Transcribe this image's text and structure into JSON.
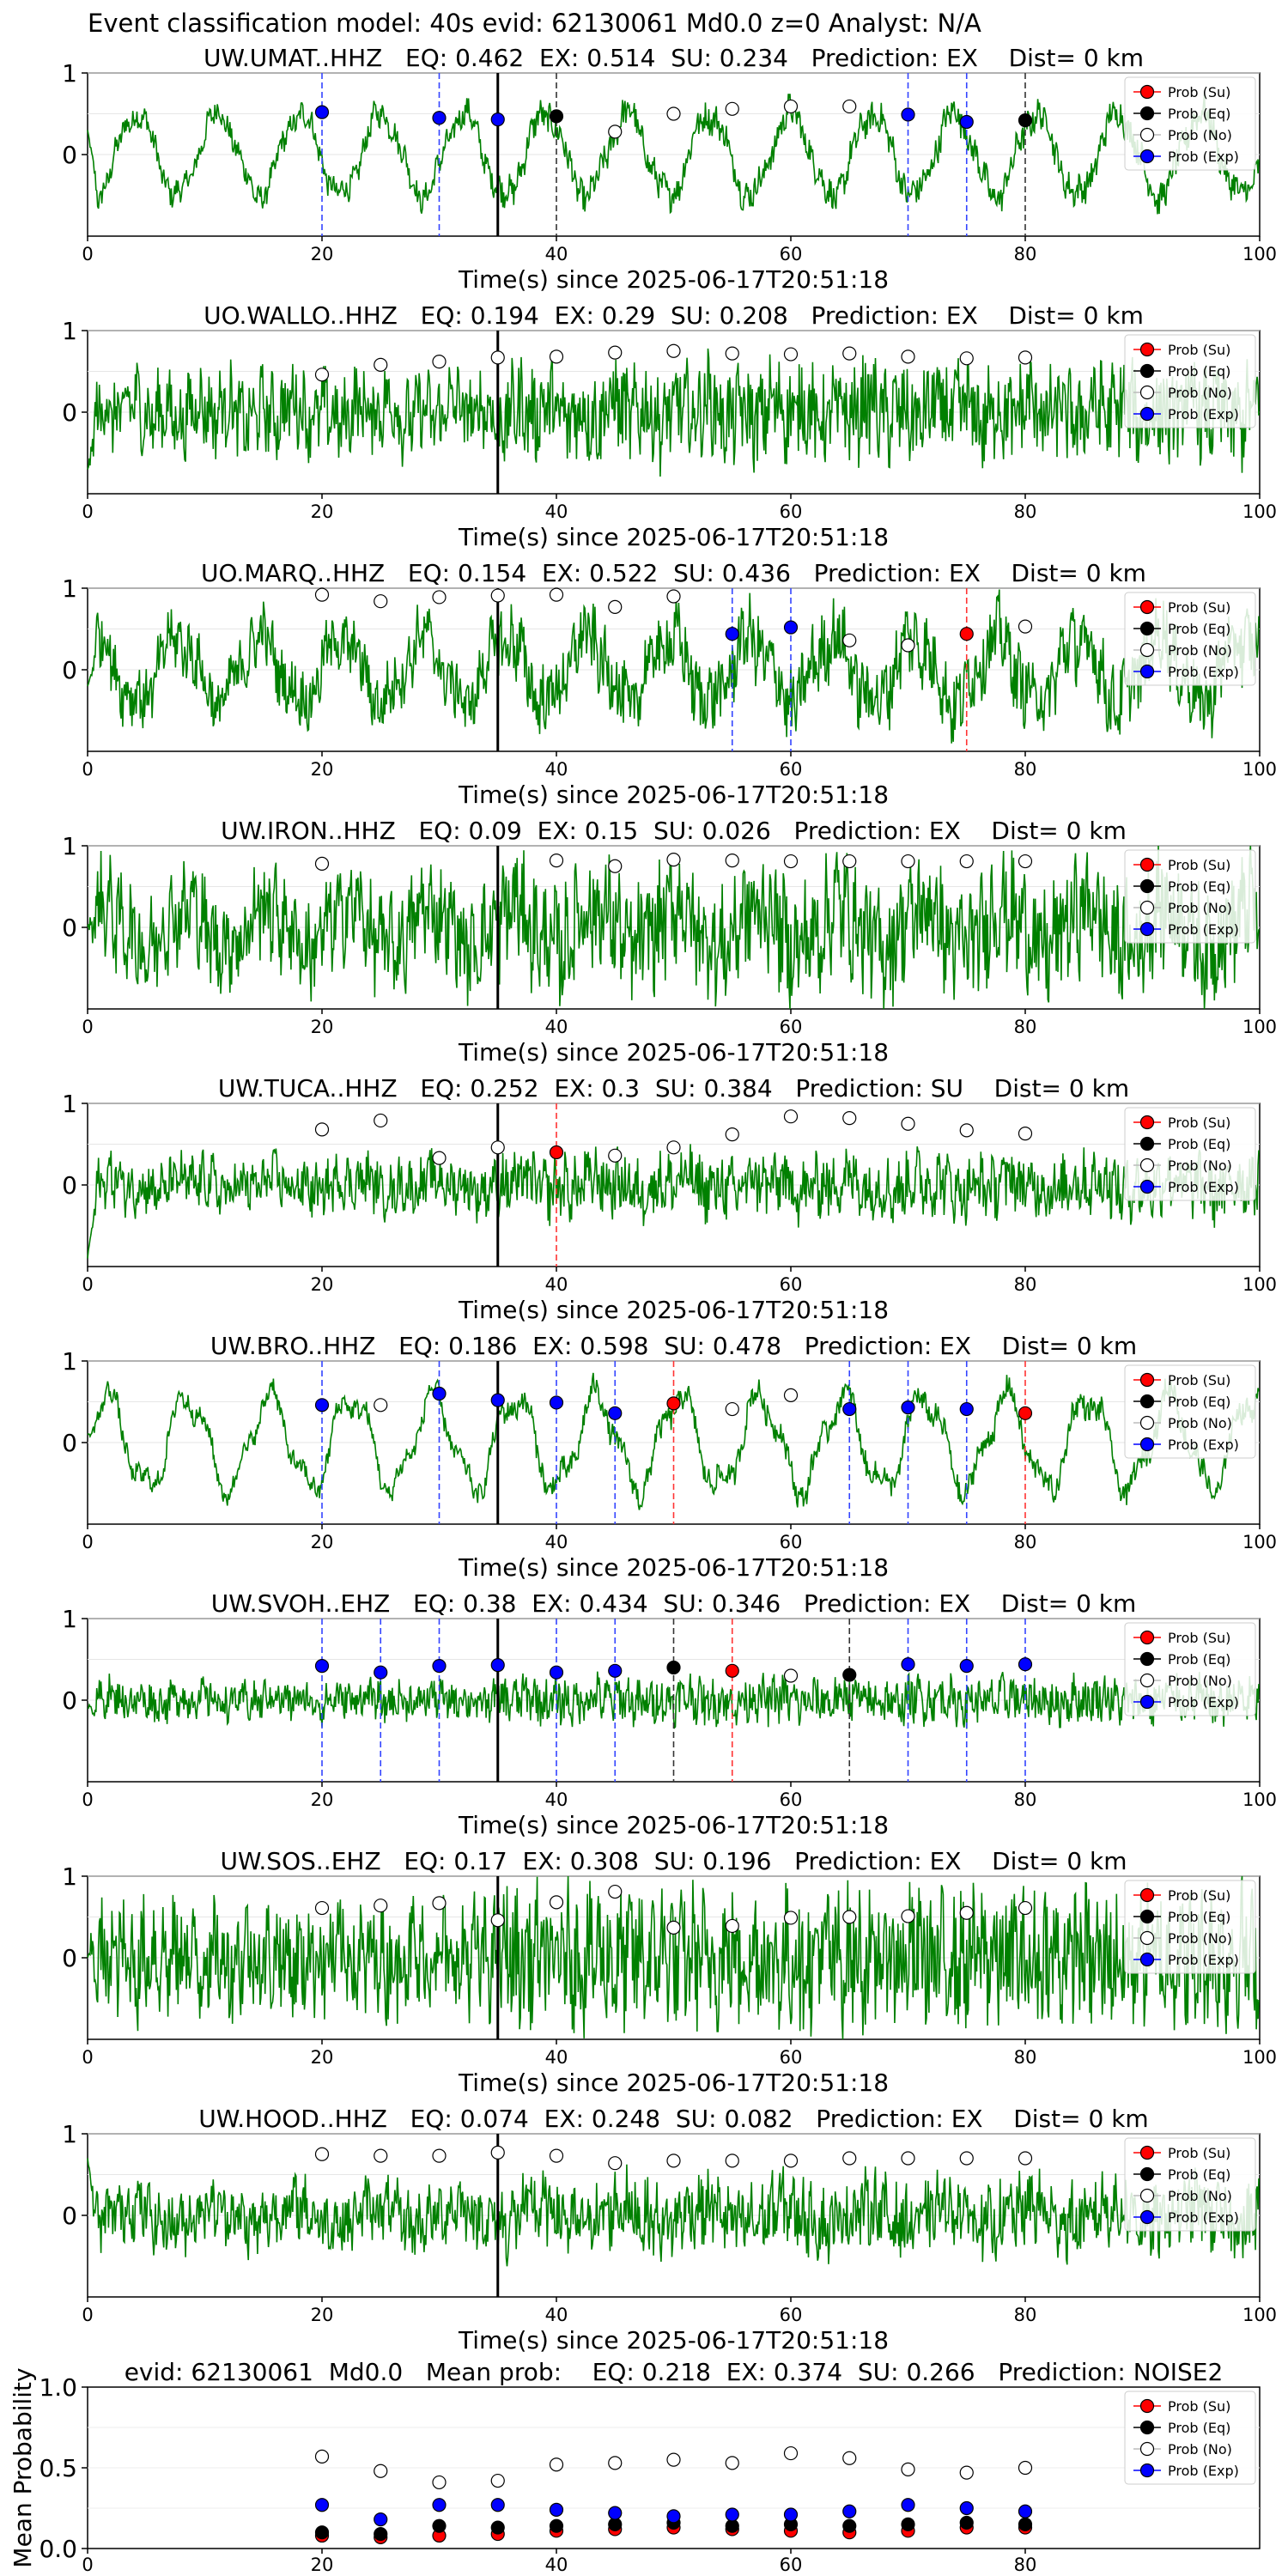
{
  "figure_title": "Event classification model: 40s evid: 62130061 Md0.0 z=0 Analyst: N/A",
  "legend_labels": [
    "Prob (Su)",
    "Prob (Eq)",
    "Prob (No)",
    "Prob (Exp)"
  ],
  "colors": {
    "su": "#ff0000",
    "eq": "#000000",
    "no": "#ffffff",
    "exp": "#0000ff",
    "waveform": "#008000",
    "arrival_line": "#000000"
  },
  "chart_data": [
    {
      "type": "line",
      "title": "UW.UMAT..HHZ   EQ: 0.462  EX: 0.514  SU: 0.234   Prediction: EX    Dist= 0 km",
      "xlabel": "Time(s) since 2025-06-17T20:51:18",
      "xlim": [
        0,
        100
      ],
      "ylim": [
        -1,
        1
      ],
      "xticks": [
        "0",
        "20",
        "40",
        "60",
        "80",
        "100"
      ],
      "yticks": [
        "0",
        "1"
      ],
      "arrival_time": 35,
      "points": [
        {
          "x": 20,
          "cls": "exp",
          "p": 0.52
        },
        {
          "x": 30,
          "cls": "exp",
          "p": 0.45
        },
        {
          "x": 35,
          "cls": "exp",
          "p": 0.43
        },
        {
          "x": 40,
          "cls": "eq",
          "p": 0.47
        },
        {
          "x": 45,
          "cls": "no",
          "p": 0.28
        },
        {
          "x": 50,
          "cls": "no",
          "p": 0.5
        },
        {
          "x": 55,
          "cls": "no",
          "p": 0.56
        },
        {
          "x": 60,
          "cls": "no",
          "p": 0.59
        },
        {
          "x": 65,
          "cls": "no",
          "p": 0.59
        },
        {
          "x": 70,
          "cls": "exp",
          "p": 0.49
        },
        {
          "x": 75,
          "cls": "exp",
          "p": 0.4
        },
        {
          "x": 80,
          "cls": "eq",
          "p": 0.42
        }
      ]
    },
    {
      "type": "line",
      "title": "UO.WALLO..HHZ   EQ: 0.194  EX: 0.29  SU: 0.208   Prediction: EX    Dist= 0 km",
      "xlabel": "Time(s) since 2025-06-17T20:51:18",
      "xlim": [
        0,
        100
      ],
      "ylim": [
        -1,
        1
      ],
      "xticks": [
        "0",
        "20",
        "40",
        "60",
        "80",
        "100"
      ],
      "yticks": [
        "0",
        "1"
      ],
      "arrival_time": 35,
      "points": [
        {
          "x": 20,
          "cls": "no",
          "p": 0.46
        },
        {
          "x": 25,
          "cls": "no",
          "p": 0.58
        },
        {
          "x": 30,
          "cls": "no",
          "p": 0.62
        },
        {
          "x": 35,
          "cls": "no",
          "p": 0.67
        },
        {
          "x": 40,
          "cls": "no",
          "p": 0.68
        },
        {
          "x": 45,
          "cls": "no",
          "p": 0.73
        },
        {
          "x": 50,
          "cls": "no",
          "p": 0.75
        },
        {
          "x": 55,
          "cls": "no",
          "p": 0.72
        },
        {
          "x": 60,
          "cls": "no",
          "p": 0.71
        },
        {
          "x": 65,
          "cls": "no",
          "p": 0.72
        },
        {
          "x": 70,
          "cls": "no",
          "p": 0.68
        },
        {
          "x": 75,
          "cls": "no",
          "p": 0.66
        },
        {
          "x": 80,
          "cls": "no",
          "p": 0.67
        }
      ]
    },
    {
      "type": "line",
      "title": "UO.MARQ..HHZ   EQ: 0.154  EX: 0.522  SU: 0.436   Prediction: EX    Dist= 0 km",
      "xlabel": "Time(s) since 2025-06-17T20:51:18",
      "xlim": [
        0,
        100
      ],
      "ylim": [
        -1,
        1
      ],
      "xticks": [
        "0",
        "20",
        "40",
        "60",
        "80",
        "100"
      ],
      "yticks": [
        "0",
        "1"
      ],
      "arrival_time": 35,
      "points": [
        {
          "x": 20,
          "cls": "no",
          "p": 0.92
        },
        {
          "x": 25,
          "cls": "no",
          "p": 0.84
        },
        {
          "x": 30,
          "cls": "no",
          "p": 0.89
        },
        {
          "x": 35,
          "cls": "no",
          "p": 0.91
        },
        {
          "x": 40,
          "cls": "no",
          "p": 0.92
        },
        {
          "x": 45,
          "cls": "no",
          "p": 0.77
        },
        {
          "x": 50,
          "cls": "no",
          "p": 0.9
        },
        {
          "x": 55,
          "cls": "exp",
          "p": 0.44
        },
        {
          "x": 60,
          "cls": "exp",
          "p": 0.52
        },
        {
          "x": 65,
          "cls": "no",
          "p": 0.36
        },
        {
          "x": 70,
          "cls": "no",
          "p": 0.3
        },
        {
          "x": 75,
          "cls": "su",
          "p": 0.44
        },
        {
          "x": 80,
          "cls": "no",
          "p": 0.53
        }
      ]
    },
    {
      "type": "line",
      "title": "UW.IRON..HHZ   EQ: 0.09  EX: 0.15  SU: 0.026   Prediction: EX    Dist= 0 km",
      "xlabel": "Time(s) since 2025-06-17T20:51:18",
      "xlim": [
        0,
        100
      ],
      "ylim": [
        -1,
        1
      ],
      "xticks": [
        "0",
        "20",
        "40",
        "60",
        "80",
        "100"
      ],
      "yticks": [
        "0",
        "1"
      ],
      "arrival_time": 35,
      "points": [
        {
          "x": 20,
          "cls": "no",
          "p": 0.78
        },
        {
          "x": 40,
          "cls": "no",
          "p": 0.82
        },
        {
          "x": 45,
          "cls": "no",
          "p": 0.75
        },
        {
          "x": 50,
          "cls": "no",
          "p": 0.83
        },
        {
          "x": 55,
          "cls": "no",
          "p": 0.82
        },
        {
          "x": 60,
          "cls": "no",
          "p": 0.81
        },
        {
          "x": 65,
          "cls": "no",
          "p": 0.81
        },
        {
          "x": 70,
          "cls": "no",
          "p": 0.81
        },
        {
          "x": 75,
          "cls": "no",
          "p": 0.81
        },
        {
          "x": 80,
          "cls": "no",
          "p": 0.81
        }
      ]
    },
    {
      "type": "line",
      "title": "UW.TUCA..HHZ   EQ: 0.252  EX: 0.3  SU: 0.384   Prediction: SU    Dist= 0 km",
      "xlabel": "Time(s) since 2025-06-17T20:51:18",
      "xlim": [
        0,
        100
      ],
      "ylim": [
        -1,
        1
      ],
      "xticks": [
        "0",
        "20",
        "40",
        "60",
        "80",
        "100"
      ],
      "yticks": [
        "0",
        "1"
      ],
      "arrival_time": 35,
      "points": [
        {
          "x": 20,
          "cls": "no",
          "p": 0.68
        },
        {
          "x": 25,
          "cls": "no",
          "p": 0.79
        },
        {
          "x": 30,
          "cls": "no",
          "p": 0.33
        },
        {
          "x": 35,
          "cls": "no",
          "p": 0.46
        },
        {
          "x": 40,
          "cls": "su",
          "p": 0.4
        },
        {
          "x": 45,
          "cls": "no",
          "p": 0.36
        },
        {
          "x": 50,
          "cls": "no",
          "p": 0.46
        },
        {
          "x": 55,
          "cls": "no",
          "p": 0.62
        },
        {
          "x": 60,
          "cls": "no",
          "p": 0.84
        },
        {
          "x": 65,
          "cls": "no",
          "p": 0.82
        },
        {
          "x": 70,
          "cls": "no",
          "p": 0.75
        },
        {
          "x": 75,
          "cls": "no",
          "p": 0.67
        },
        {
          "x": 80,
          "cls": "no",
          "p": 0.63
        }
      ]
    },
    {
      "type": "line",
      "title": "UW.BRO..HHZ   EQ: 0.186  EX: 0.598  SU: 0.478   Prediction: EX    Dist= 0 km",
      "xlabel": "Time(s) since 2025-06-17T20:51:18",
      "xlim": [
        0,
        100
      ],
      "ylim": [
        -1,
        1
      ],
      "xticks": [
        "0",
        "20",
        "40",
        "60",
        "80",
        "100"
      ],
      "yticks": [
        "0",
        "1"
      ],
      "arrival_time": 35,
      "points": [
        {
          "x": 20,
          "cls": "exp",
          "p": 0.46
        },
        {
          "x": 25,
          "cls": "no",
          "p": 0.46
        },
        {
          "x": 30,
          "cls": "exp",
          "p": 0.6
        },
        {
          "x": 35,
          "cls": "exp",
          "p": 0.52
        },
        {
          "x": 40,
          "cls": "exp",
          "p": 0.49
        },
        {
          "x": 45,
          "cls": "exp",
          "p": 0.36
        },
        {
          "x": 50,
          "cls": "su",
          "p": 0.48
        },
        {
          "x": 55,
          "cls": "no",
          "p": 0.41
        },
        {
          "x": 60,
          "cls": "no",
          "p": 0.58
        },
        {
          "x": 65,
          "cls": "exp",
          "p": 0.41
        },
        {
          "x": 70,
          "cls": "exp",
          "p": 0.43
        },
        {
          "x": 75,
          "cls": "exp",
          "p": 0.41
        },
        {
          "x": 80,
          "cls": "su",
          "p": 0.36
        }
      ]
    },
    {
      "type": "line",
      "title": "UW.SVOH..EHZ   EQ: 0.38  EX: 0.434  SU: 0.346   Prediction: EX    Dist= 0 km",
      "xlabel": "Time(s) since 2025-06-17T20:51:18",
      "xlim": [
        0,
        100
      ],
      "ylim": [
        -1,
        1
      ],
      "xticks": [
        "0",
        "20",
        "40",
        "60",
        "80",
        "100"
      ],
      "yticks": [
        "0",
        "1"
      ],
      "arrival_time": 35,
      "points": [
        {
          "x": 20,
          "cls": "exp",
          "p": 0.42
        },
        {
          "x": 25,
          "cls": "exp",
          "p": 0.34
        },
        {
          "x": 30,
          "cls": "exp",
          "p": 0.42
        },
        {
          "x": 35,
          "cls": "exp",
          "p": 0.43
        },
        {
          "x": 40,
          "cls": "exp",
          "p": 0.34
        },
        {
          "x": 45,
          "cls": "exp",
          "p": 0.36
        },
        {
          "x": 50,
          "cls": "eq",
          "p": 0.4
        },
        {
          "x": 55,
          "cls": "su",
          "p": 0.36
        },
        {
          "x": 60,
          "cls": "no",
          "p": 0.3
        },
        {
          "x": 65,
          "cls": "eq",
          "p": 0.31
        },
        {
          "x": 70,
          "cls": "exp",
          "p": 0.44
        },
        {
          "x": 75,
          "cls": "exp",
          "p": 0.42
        },
        {
          "x": 80,
          "cls": "exp",
          "p": 0.44
        }
      ]
    },
    {
      "type": "line",
      "title": "UW.SOS..EHZ   EQ: 0.17  EX: 0.308  SU: 0.196   Prediction: EX    Dist= 0 km",
      "xlabel": "Time(s) since 2025-06-17T20:51:18",
      "xlim": [
        0,
        100
      ],
      "ylim": [
        -1,
        1
      ],
      "xticks": [
        "0",
        "20",
        "40",
        "60",
        "80",
        "100"
      ],
      "yticks": [
        "0",
        "1"
      ],
      "arrival_time": 35,
      "points": [
        {
          "x": 20,
          "cls": "no",
          "p": 0.61
        },
        {
          "x": 25,
          "cls": "no",
          "p": 0.64
        },
        {
          "x": 30,
          "cls": "no",
          "p": 0.67
        },
        {
          "x": 35,
          "cls": "no",
          "p": 0.46
        },
        {
          "x": 40,
          "cls": "no",
          "p": 0.68
        },
        {
          "x": 45,
          "cls": "no",
          "p": 0.81
        },
        {
          "x": 50,
          "cls": "no",
          "p": 0.37
        },
        {
          "x": 55,
          "cls": "no",
          "p": 0.39
        },
        {
          "x": 60,
          "cls": "no",
          "p": 0.49
        },
        {
          "x": 65,
          "cls": "no",
          "p": 0.5
        },
        {
          "x": 70,
          "cls": "no",
          "p": 0.51
        },
        {
          "x": 75,
          "cls": "no",
          "p": 0.55
        },
        {
          "x": 80,
          "cls": "no",
          "p": 0.61
        }
      ]
    },
    {
      "type": "line",
      "title": "UW.HOOD..HHZ   EQ: 0.074  EX: 0.248  SU: 0.082   Prediction: EX    Dist= 0 km",
      "xlabel": "Time(s) since 2025-06-17T20:51:18",
      "xlim": [
        0,
        100
      ],
      "ylim": [
        -1,
        1
      ],
      "xticks": [
        "0",
        "20",
        "40",
        "60",
        "80",
        "100"
      ],
      "yticks": [
        "0",
        "1"
      ],
      "arrival_time": 35,
      "points": [
        {
          "x": 20,
          "cls": "no",
          "p": 0.75
        },
        {
          "x": 25,
          "cls": "no",
          "p": 0.73
        },
        {
          "x": 30,
          "cls": "no",
          "p": 0.73
        },
        {
          "x": 35,
          "cls": "no",
          "p": 0.77
        },
        {
          "x": 40,
          "cls": "no",
          "p": 0.73
        },
        {
          "x": 45,
          "cls": "no",
          "p": 0.64
        },
        {
          "x": 50,
          "cls": "no",
          "p": 0.67
        },
        {
          "x": 55,
          "cls": "no",
          "p": 0.67
        },
        {
          "x": 60,
          "cls": "no",
          "p": 0.67
        },
        {
          "x": 65,
          "cls": "no",
          "p": 0.7
        },
        {
          "x": 70,
          "cls": "no",
          "p": 0.7
        },
        {
          "x": 75,
          "cls": "no",
          "p": 0.7
        },
        {
          "x": 80,
          "cls": "no",
          "p": 0.7
        }
      ]
    },
    {
      "type": "scatter",
      "title": "evid: 62130061  Md0.0   Mean prob:    EQ: 0.218  EX: 0.374  SU: 0.266   Prediction: NOISE2",
      "ylabel": "Mean Probability",
      "xlim": [
        0,
        100
      ],
      "ylim": [
        0,
        1
      ],
      "xticks": [
        "0",
        "20",
        "40",
        "60",
        "80"
      ],
      "yticks": [
        "0.0",
        "0.5",
        "1.0"
      ],
      "x": [
        20,
        25,
        30,
        35,
        40,
        45,
        50,
        55,
        60,
        65,
        70,
        75,
        80
      ],
      "series": [
        {
          "name": "Prob (Su)",
          "cls": "su",
          "values": [
            0.08,
            0.07,
            0.08,
            0.09,
            0.11,
            0.12,
            0.13,
            0.12,
            0.11,
            0.1,
            0.11,
            0.13,
            0.13
          ]
        },
        {
          "name": "Prob (Eq)",
          "cls": "eq",
          "values": [
            0.1,
            0.09,
            0.14,
            0.13,
            0.14,
            0.15,
            0.16,
            0.14,
            0.15,
            0.14,
            0.15,
            0.16,
            0.15
          ]
        },
        {
          "name": "Prob (No)",
          "cls": "no",
          "values": [
            0.57,
            0.48,
            0.41,
            0.42,
            0.52,
            0.53,
            0.55,
            0.53,
            0.59,
            0.56,
            0.49,
            0.47,
            0.5
          ]
        },
        {
          "name": "Prob (Exp)",
          "cls": "exp",
          "values": [
            0.27,
            0.18,
            0.27,
            0.27,
            0.24,
            0.22,
            0.2,
            0.21,
            0.21,
            0.23,
            0.27,
            0.25,
            0.23
          ]
        }
      ]
    }
  ]
}
